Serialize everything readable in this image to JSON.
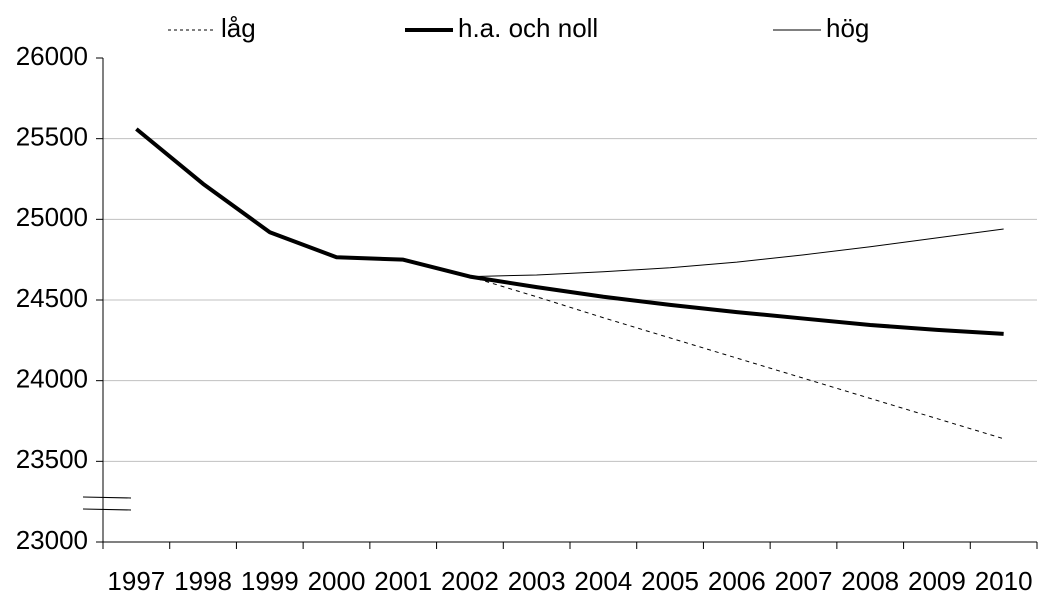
{
  "chart_data": {
    "type": "line",
    "categories": [
      "1997",
      "1998",
      "1999",
      "2000",
      "2001",
      "2002",
      "2003",
      "2004",
      "2005",
      "2006",
      "2007",
      "2008",
      "2009",
      "2010"
    ],
    "series": [
      {
        "name": "låg",
        "color": "#000000",
        "dash": true,
        "linewidth": 1,
        "values": [
          null,
          null,
          null,
          null,
          null,
          24645,
          24520,
          24390,
          24265,
          24140,
          24015,
          23890,
          23765,
          23640
        ]
      },
      {
        "name": "h.a. och noll",
        "color": "#000000",
        "dash": false,
        "linewidth": 4,
        "values": [
          25560,
          25220,
          24920,
          24765,
          24750,
          24645,
          24580,
          24520,
          24470,
          24425,
          24385,
          24345,
          24315,
          24290
        ]
      },
      {
        "name": "hög",
        "color": "#000000",
        "dash": false,
        "linewidth": 1,
        "values": [
          null,
          null,
          null,
          null,
          null,
          24645,
          24655,
          24675,
          24700,
          24735,
          24780,
          24830,
          24885,
          24940
        ]
      }
    ],
    "ylim": [
      23000,
      26000
    ],
    "yticks": [
      23000,
      23500,
      24000,
      24500,
      25000,
      25500,
      26000
    ],
    "grid": true,
    "legend": "top"
  }
}
